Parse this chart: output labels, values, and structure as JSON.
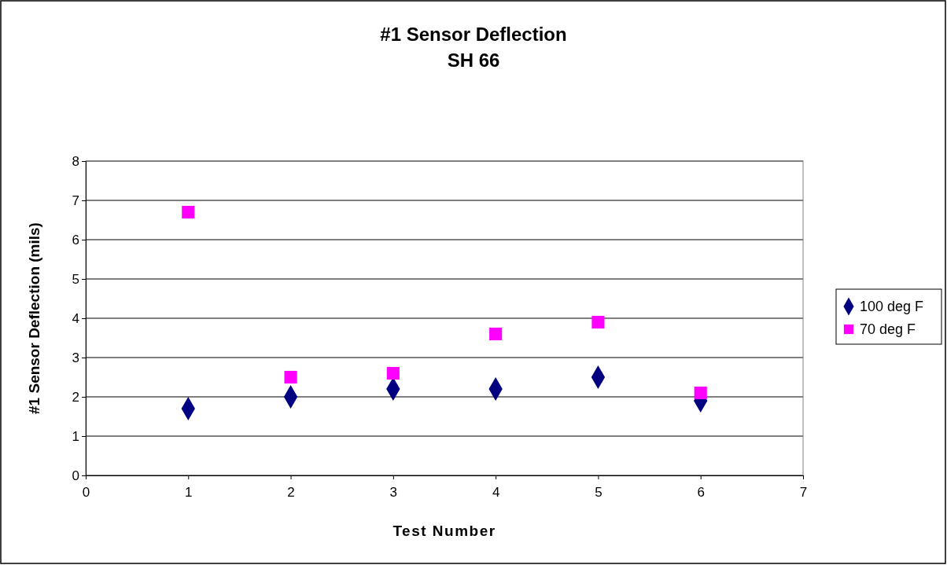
{
  "chart_data": {
    "type": "scatter",
    "title": "#1 Sensor Deflection\nSH 66",
    "xlabel": "Test Number",
    "ylabel": "#1 Sensor Deflection (mils)",
    "x": [
      1,
      2,
      3,
      4,
      5,
      6
    ],
    "series": [
      {
        "name": "100 deg F",
        "color": "#000080",
        "marker": "diamond",
        "values": [
          1.7,
          2.0,
          2.2,
          2.2,
          2.5,
          1.9
        ]
      },
      {
        "name": "70 deg F",
        "color": "#ff00ff",
        "marker": "square",
        "values": [
          6.7,
          2.5,
          2.6,
          3.6,
          3.9,
          2.1
        ]
      }
    ],
    "xlim": [
      0,
      7
    ],
    "xticks": [
      0,
      1,
      2,
      3,
      4,
      5,
      6,
      7
    ],
    "ylim": [
      0,
      8
    ],
    "yticks": [
      0,
      1,
      2,
      3,
      4,
      5,
      6,
      7,
      8
    ],
    "grid": "y",
    "legend": "right"
  }
}
